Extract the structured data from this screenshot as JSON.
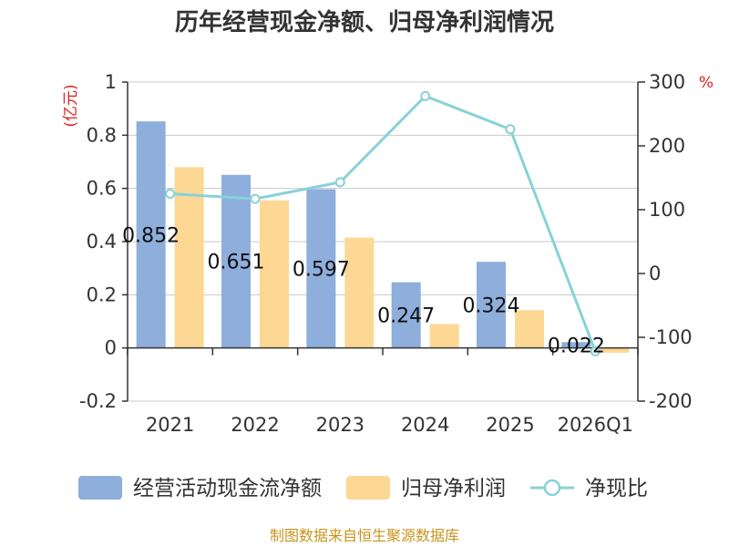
{
  "chart_data": {
    "type": "bar",
    "title": "历年经营现金净额、归母净利润情况",
    "categories": [
      "2021",
      "2022",
      "2023",
      "2024",
      "2025",
      "2026Q1"
    ],
    "left_unit": "(亿元)",
    "right_unit": "%",
    "ylim_left": [
      -0.2,
      1
    ],
    "yticks_left": [
      "-0.2",
      "0",
      "0.2",
      "0.4",
      "0.6",
      "0.8",
      "1"
    ],
    "ylim_right": [
      -200,
      300
    ],
    "yticks_right": [
      "-200",
      "-100",
      "0",
      "100",
      "200",
      "300"
    ],
    "series": [
      {
        "name": "经营活动现金流净额",
        "kind": "bar",
        "axis": "left",
        "color": "#8eaedb",
        "values": [
          0.852,
          0.651,
          0.597,
          0.247,
          0.324,
          0.022
        ],
        "labels": [
          "0.852",
          "0.651",
          "0.597",
          "0.247",
          "0.324",
          "0.022"
        ]
      },
      {
        "name": "归母净利润",
        "kind": "bar",
        "axis": "left",
        "color": "#fdd794",
        "values": [
          0.68,
          0.555,
          0.415,
          0.09,
          0.142,
          -0.018
        ]
      },
      {
        "name": "净现比",
        "kind": "line",
        "axis": "right",
        "color": "#88d2d8",
        "values": [
          125,
          117,
          143,
          278,
          226,
          -122
        ]
      }
    ],
    "grid": true,
    "legend_position": "bottom"
  },
  "source_text": "制图数据来自恒生聚源数据库"
}
